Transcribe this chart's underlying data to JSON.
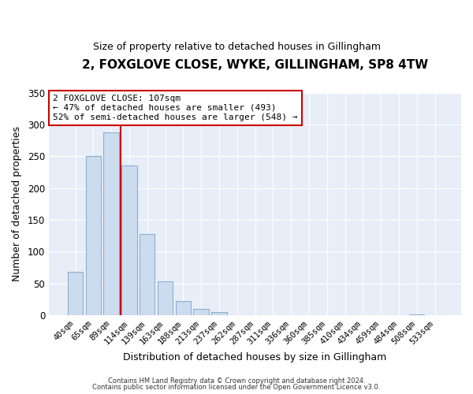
{
  "title": "2, FOXGLOVE CLOSE, WYKE, GILLINGHAM, SP8 4TW",
  "subtitle": "Size of property relative to detached houses in Gillingham",
  "xlabel": "Distribution of detached houses by size in Gillingham",
  "ylabel": "Number of detached properties",
  "bin_labels": [
    "40sqm",
    "65sqm",
    "89sqm",
    "114sqm",
    "139sqm",
    "163sqm",
    "188sqm",
    "213sqm",
    "237sqm",
    "262sqm",
    "287sqm",
    "311sqm",
    "336sqm",
    "360sqm",
    "385sqm",
    "410sqm",
    "434sqm",
    "459sqm",
    "484sqm",
    "508sqm",
    "533sqm"
  ],
  "bar_values": [
    68,
    250,
    287,
    235,
    128,
    54,
    22,
    10,
    5,
    0,
    0,
    0,
    0,
    0,
    0,
    0,
    0,
    0,
    0,
    2,
    0
  ],
  "bar_color": "#ccdcef",
  "bar_edge_color": "#8ab0d0",
  "vline_color": "#cc0000",
  "annotation_title": "2 FOXGLOVE CLOSE: 107sqm",
  "annotation_line1": "← 47% of detached houses are smaller (493)",
  "annotation_line2": "52% of semi-detached houses are larger (548) →",
  "annotation_box_color": "#ffffff",
  "annotation_box_edge": "#cc0000",
  "ylim": [
    0,
    350
  ],
  "yticks": [
    0,
    50,
    100,
    150,
    200,
    250,
    300,
    350
  ],
  "footer1": "Contains HM Land Registry data © Crown copyright and database right 2024.",
  "footer2": "Contains public sector information licensed under the Open Government Licence v3.0.",
  "bg_color": "#ffffff",
  "plot_bg_color": "#e8eef8",
  "grid_color": "#ffffff"
}
